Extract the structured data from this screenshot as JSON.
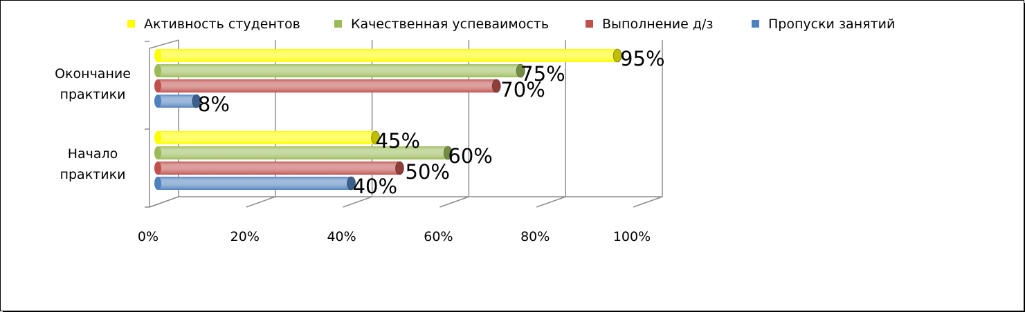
{
  "chart_data": {
    "type": "bar",
    "orientation": "horizontal",
    "style": "3d-cylinder",
    "categories": [
      "Окончание практики",
      "Начало практики"
    ],
    "category_lines": [
      [
        "Окончание",
        "практики"
      ],
      [
        "Начало",
        "практики"
      ]
    ],
    "series": [
      {
        "name": "Активность студентов",
        "color": "#ffff00",
        "values": [
          95,
          45
        ],
        "labels": [
          "95%",
          "45%"
        ]
      },
      {
        "name": "Качественная успеваимость",
        "color": "#9bbb59",
        "values": [
          75,
          60
        ],
        "labels": [
          "75%",
          "60%"
        ]
      },
      {
        "name": "Выполнение д/з",
        "color": "#c0504d",
        "values": [
          70,
          50
        ],
        "labels": [
          "70%",
          "50%"
        ]
      },
      {
        "name": "Пропуски занятий",
        "color": "#4f81bd",
        "values": [
          8,
          40
        ],
        "labels": [
          "8%",
          "40%"
        ]
      }
    ],
    "x_ticks": [
      "0%",
      "20%",
      "40%",
      "60%",
      "80%",
      "100%"
    ],
    "xlim": [
      0,
      100
    ],
    "grid": true,
    "legend": "top"
  }
}
